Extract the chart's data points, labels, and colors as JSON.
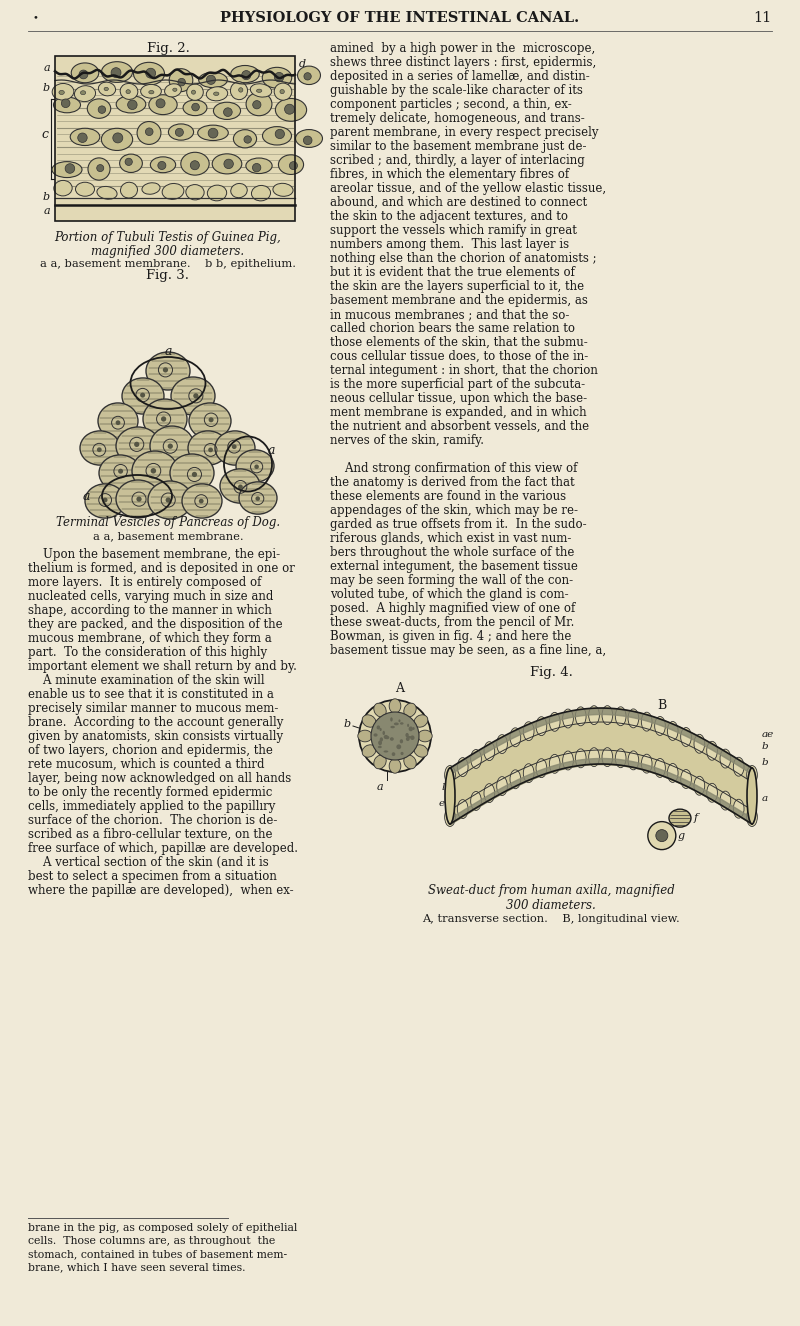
{
  "bg_color": "#f0ead8",
  "page_title": "PHYSIOLOGY OF THE INTESTINAL CANAL.",
  "page_number": "11",
  "fig2_title": "Fig. 2.",
  "fig2_caption_line1": "Portion of Tubuli Testis of Guinea Pig,",
  "fig2_caption_line2": "magnified 300 diameters.",
  "fig2_caption_line3": "a a, basement membrane.    b b, epithelium.",
  "fig3_title": "Fig. 3.",
  "fig3_caption_line1": "Terminal Vesicles of Pancreas of Dog.",
  "fig3_caption_line2": "a a, basement membrane.",
  "fig4_title": "Fig. 4.",
  "fig4_caption_line1": "Sweat-duct from human axilla, magnified",
  "fig4_caption_line2": "300 diameters.",
  "fig4_caption_line3": "A, transverse section.    B, longitudinal view.",
  "right_text": [
    "amined  by a high power in the  microscope,",
    "shews three distinct layers : first, epidermis,",
    "deposited in a series of lamellæ, and distin-",
    "guishable by the scale-like character of its",
    "component particles ; second, a thin, ex-",
    "tremely delicate, homogeneous, and trans-",
    "parent membrane, in every respect precisely",
    "similar to the basement membrane just de-",
    "scribed ; and, thirdly, a layer of interlacing",
    "fibres, in which the elementary fibres of",
    "areolar tissue, and of the yellow elastic tissue,",
    "abound, and which are destined to connect",
    "the skin to the adjacent textures, and to",
    "support the vessels which ramify in great",
    "numbers among them.  This last layer is",
    "nothing else than the chorion of anatomists ;",
    "but it is evident that the true elements of",
    "the skin are the layers superficial to it, the",
    "basement membrane and the epidermis, as",
    "in mucous membranes ; and that the so-",
    "called chorion bears the same relation to",
    "those elements of the skin, that the submu-",
    "cous cellular tissue does, to those of the in-",
    "ternal integument : in short, that the chorion",
    "is the more superficial part of the subcuta-",
    "neous cellular tissue, upon which the base-",
    "ment membrane is expanded, and in which",
    "the nutrient and absorbent vessels, and the",
    "nerves of the skin, ramify.",
    "",
    "    And strong confirmation of this view of",
    "the anatomy is derived from the fact that",
    "these elements are found in the various",
    "appendages of the skin, which may be re-",
    "garded as true offsets from it.  In the sudo-",
    "riferous glands, which exist in vast num-",
    "bers throughout the whole surface of the",
    "external integument, the basement tissue",
    "may be seen forming the wall of the con-",
    "voluted tube, of which the gland is com-",
    "posed.  A highly magnified view of one of",
    "these sweat-ducts, from the pencil of Mr.",
    "Bowman, is given in fig. 4 ; and here the",
    "basement tissue may be seen, as a fine line, a,"
  ],
  "left_text_body": [
    "    Upon the basement membrane, the epi-",
    "thelium is formed, and is deposited in one or",
    "more layers.  It is entirely composed of",
    "nucleated cells, varying much in size and",
    "shape, according to the manner in which",
    "they are packed, and the disposition of the",
    "mucous membrane, of which they form a",
    "part.  To the consideration of this highly",
    "important element we shall return by and by.",
    "    A minute examination of the skin will",
    "enable us to see that it is constituted in a",
    "precisely similar manner to mucous mem-",
    "brane.  According to the account generally",
    "given by anatomists, skin consists virtually",
    "of two layers, chorion and epidermis, the",
    "rete mucosum, which is counted a third",
    "layer, being now acknowledged on all hands",
    "to be only the recently formed epidermic",
    "cells, immediately applied to the papillıry",
    "surface of the chorion.  The chorion is de-",
    "scribed as a fibro-cellular texture, on the",
    "free surface of which, papillæ are developed.",
    "    A vertical section of the skin (and it is",
    "best to select a specimen from a situation",
    "where the papillæ are developed),  when ex-"
  ],
  "footnote_lines": [
    "brane in the pig, as composed solely of epithelial",
    "cells.  Those columns are, as throughout  the",
    "stomach, contained in tubes of basement mem-",
    "brane, which I have seen several times."
  ]
}
